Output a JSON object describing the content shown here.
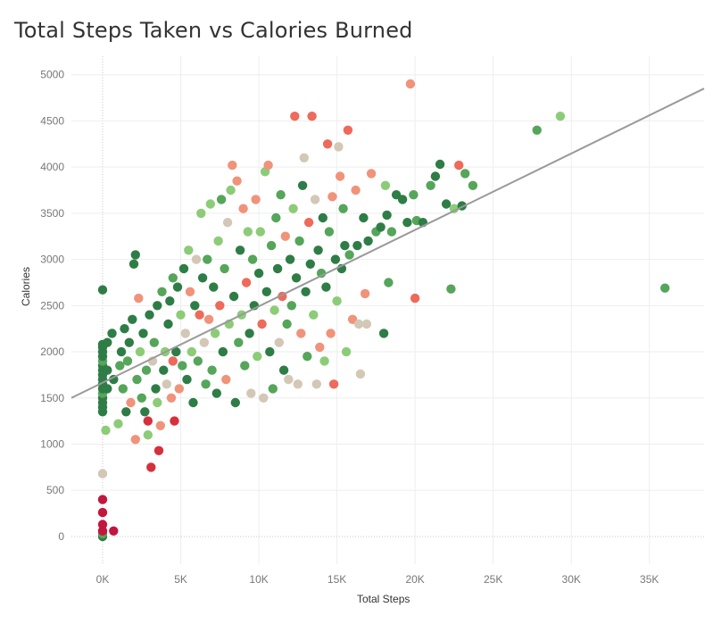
{
  "chart_data": {
    "type": "scatter",
    "title": "Total Steps Taken vs Calories Burned",
    "xlabel": "Total Steps",
    "ylabel": "Calories",
    "xlim": [
      -2000,
      38500
    ],
    "ylim": [
      -300,
      5200
    ],
    "x_ticks": [
      0,
      5000,
      10000,
      15000,
      20000,
      25000,
      30000,
      35000
    ],
    "x_tick_labels": [
      "0K",
      "5K",
      "10K",
      "15K",
      "20K",
      "25K",
      "30K",
      "35K"
    ],
    "y_ticks": [
      0,
      500,
      1000,
      1500,
      2000,
      2500,
      3000,
      3500,
      4000,
      4500,
      5000
    ],
    "y_tick_labels": [
      "0",
      "500",
      "1000",
      "1500",
      "2000",
      "2500",
      "3000",
      "3500",
      "4000",
      "4500",
      "5000"
    ],
    "grid": true,
    "trend_line": {
      "x": [
        -2000,
        38500
      ],
      "y": [
        1500,
        4850
      ]
    },
    "colors": {
      "dark_green": "#2e7d46",
      "mid_green": "#55a55a",
      "light_green": "#8ccc78",
      "tan": "#d3c7b6",
      "salmon": "#f0937a",
      "coral": "#ee6a5a",
      "red": "#d6303c",
      "crimson": "#c2163f",
      "trend": "#999999"
    },
    "points": [
      [
        0,
        0,
        "dark_green"
      ],
      [
        0,
        30,
        "mid_green"
      ],
      [
        0,
        60,
        "crimson"
      ],
      [
        0,
        130,
        "crimson"
      ],
      [
        0,
        260,
        "crimson"
      ],
      [
        0,
        400,
        "crimson"
      ],
      [
        700,
        60,
        "crimson"
      ],
      [
        0,
        680,
        "tan"
      ],
      [
        0,
        1350,
        "dark_green"
      ],
      [
        0,
        1400,
        "dark_green"
      ],
      [
        0,
        1450,
        "dark_green"
      ],
      [
        0,
        1500,
        "dark_green"
      ],
      [
        0,
        1550,
        "mid_green"
      ],
      [
        0,
        1600,
        "dark_green"
      ],
      [
        0,
        1650,
        "dark_green"
      ],
      [
        0,
        1700,
        "dark_green"
      ],
      [
        0,
        1750,
        "dark_green"
      ],
      [
        0,
        1800,
        "dark_green"
      ],
      [
        0,
        1850,
        "dark_green"
      ],
      [
        0,
        1900,
        "mid_green"
      ],
      [
        0,
        1950,
        "dark_green"
      ],
      [
        0,
        2000,
        "dark_green"
      ],
      [
        0,
        2050,
        "dark_green"
      ],
      [
        0,
        2080,
        "dark_green"
      ],
      [
        0,
        2670,
        "dark_green"
      ],
      [
        200,
        1150,
        "light_green"
      ],
      [
        300,
        1600,
        "dark_green"
      ],
      [
        300,
        1800,
        "dark_green"
      ],
      [
        300,
        2100,
        "dark_green"
      ],
      [
        600,
        2200,
        "dark_green"
      ],
      [
        700,
        1700,
        "dark_green"
      ],
      [
        1000,
        1220,
        "light_green"
      ],
      [
        1100,
        1850,
        "mid_green"
      ],
      [
        1200,
        2000,
        "dark_green"
      ],
      [
        1300,
        1600,
        "mid_green"
      ],
      [
        1400,
        2250,
        "dark_green"
      ],
      [
        1500,
        1350,
        "dark_green"
      ],
      [
        1600,
        1900,
        "mid_green"
      ],
      [
        1700,
        2100,
        "dark_green"
      ],
      [
        1800,
        1450,
        "salmon"
      ],
      [
        1900,
        2350,
        "dark_green"
      ],
      [
        2000,
        2950,
        "dark_green"
      ],
      [
        2100,
        3050,
        "dark_green"
      ],
      [
        2100,
        1050,
        "salmon"
      ],
      [
        2200,
        1700,
        "mid_green"
      ],
      [
        2300,
        2580,
        "salmon"
      ],
      [
        2400,
        2000,
        "light_green"
      ],
      [
        2500,
        1500,
        "mid_green"
      ],
      [
        2600,
        2200,
        "dark_green"
      ],
      [
        2700,
        1350,
        "dark_green"
      ],
      [
        2800,
        1800,
        "mid_green"
      ],
      [
        2900,
        1250,
        "red"
      ],
      [
        2900,
        1100,
        "light_green"
      ],
      [
        3000,
        2400,
        "dark_green"
      ],
      [
        3100,
        750,
        "red"
      ],
      [
        3200,
        1900,
        "tan"
      ],
      [
        3300,
        2100,
        "mid_green"
      ],
      [
        3400,
        1600,
        "dark_green"
      ],
      [
        3500,
        2500,
        "dark_green"
      ],
      [
        3500,
        1450,
        "light_green"
      ],
      [
        3600,
        930,
        "red"
      ],
      [
        3700,
        1200,
        "salmon"
      ],
      [
        3800,
        2650,
        "mid_green"
      ],
      [
        3900,
        1800,
        "dark_green"
      ],
      [
        4000,
        2000,
        "light_green"
      ],
      [
        4100,
        1650,
        "tan"
      ],
      [
        4200,
        2300,
        "dark_green"
      ],
      [
        4300,
        2550,
        "dark_green"
      ],
      [
        4400,
        1500,
        "salmon"
      ],
      [
        4500,
        2800,
        "mid_green"
      ],
      [
        4500,
        1900,
        "coral"
      ],
      [
        4600,
        1250,
        "red"
      ],
      [
        4700,
        2000,
        "dark_green"
      ],
      [
        4800,
        2700,
        "dark_green"
      ],
      [
        4900,
        1600,
        "salmon"
      ],
      [
        5000,
        2400,
        "light_green"
      ],
      [
        5100,
        1850,
        "mid_green"
      ],
      [
        5200,
        2900,
        "dark_green"
      ],
      [
        5300,
        2200,
        "tan"
      ],
      [
        5400,
        1700,
        "dark_green"
      ],
      [
        5500,
        3100,
        "light_green"
      ],
      [
        5600,
        2650,
        "salmon"
      ],
      [
        5700,
        2000,
        "light_green"
      ],
      [
        5800,
        1450,
        "dark_green"
      ],
      [
        5900,
        2500,
        "dark_green"
      ],
      [
        6000,
        3000,
        "tan"
      ],
      [
        6100,
        1900,
        "mid_green"
      ],
      [
        6200,
        2400,
        "coral"
      ],
      [
        6300,
        3500,
        "light_green"
      ],
      [
        6400,
        2800,
        "dark_green"
      ],
      [
        6500,
        2100,
        "tan"
      ],
      [
        6600,
        1650,
        "mid_green"
      ],
      [
        6700,
        3000,
        "mid_green"
      ],
      [
        6800,
        2350,
        "salmon"
      ],
      [
        6900,
        3600,
        "light_green"
      ],
      [
        7000,
        1800,
        "mid_green"
      ],
      [
        7100,
        2700,
        "dark_green"
      ],
      [
        7200,
        2200,
        "light_green"
      ],
      [
        7300,
        1550,
        "dark_green"
      ],
      [
        7400,
        3200,
        "light_green"
      ],
      [
        7500,
        2500,
        "coral"
      ],
      [
        7600,
        3650,
        "mid_green"
      ],
      [
        7700,
        2000,
        "dark_green"
      ],
      [
        7800,
        2900,
        "mid_green"
      ],
      [
        7900,
        1700,
        "salmon"
      ],
      [
        8000,
        3400,
        "tan"
      ],
      [
        8100,
        2300,
        "light_green"
      ],
      [
        8200,
        3750,
        "light_green"
      ],
      [
        8300,
        4020,
        "salmon"
      ],
      [
        8400,
        2600,
        "dark_green"
      ],
      [
        8500,
        1450,
        "dark_green"
      ],
      [
        8600,
        3850,
        "salmon"
      ],
      [
        8700,
        2100,
        "mid_green"
      ],
      [
        8800,
        3100,
        "dark_green"
      ],
      [
        8900,
        2400,
        "light_green"
      ],
      [
        9000,
        3550,
        "salmon"
      ],
      [
        9100,
        1850,
        "mid_green"
      ],
      [
        9200,
        2750,
        "coral"
      ],
      [
        9300,
        3300,
        "light_green"
      ],
      [
        9400,
        2200,
        "dark_green"
      ],
      [
        9500,
        1550,
        "tan"
      ],
      [
        9600,
        3000,
        "mid_green"
      ],
      [
        9700,
        2500,
        "dark_green"
      ],
      [
        9800,
        3650,
        "salmon"
      ],
      [
        9900,
        1950,
        "light_green"
      ],
      [
        10000,
        2850,
        "dark_green"
      ],
      [
        10100,
        3300,
        "light_green"
      ],
      [
        10200,
        2300,
        "coral"
      ],
      [
        10300,
        1500,
        "tan"
      ],
      [
        10400,
        3950,
        "light_green"
      ],
      [
        10500,
        2650,
        "dark_green"
      ],
      [
        10600,
        4020,
        "salmon"
      ],
      [
        10700,
        2000,
        "dark_green"
      ],
      [
        10800,
        3150,
        "mid_green"
      ],
      [
        10900,
        1600,
        "mid_green"
      ],
      [
        11000,
        2450,
        "light_green"
      ],
      [
        11100,
        3450,
        "mid_green"
      ],
      [
        11200,
        2900,
        "dark_green"
      ],
      [
        11300,
        2100,
        "tan"
      ],
      [
        11400,
        3700,
        "mid_green"
      ],
      [
        11500,
        2600,
        "coral"
      ],
      [
        11600,
        1800,
        "dark_green"
      ],
      [
        11700,
        3250,
        "salmon"
      ],
      [
        11800,
        2300,
        "mid_green"
      ],
      [
        11900,
        1700,
        "tan"
      ],
      [
        12000,
        3000,
        "dark_green"
      ],
      [
        12100,
        2500,
        "mid_green"
      ],
      [
        12200,
        3550,
        "light_green"
      ],
      [
        12300,
        4550,
        "coral"
      ],
      [
        12400,
        2800,
        "dark_green"
      ],
      [
        12500,
        1650,
        "tan"
      ],
      [
        12600,
        3200,
        "mid_green"
      ],
      [
        12700,
        2200,
        "salmon"
      ],
      [
        12800,
        3800,
        "dark_green"
      ],
      [
        12900,
        4100,
        "tan"
      ],
      [
        13000,
        2650,
        "dark_green"
      ],
      [
        13100,
        1950,
        "mid_green"
      ],
      [
        13200,
        3400,
        "coral"
      ],
      [
        13300,
        2950,
        "dark_green"
      ],
      [
        13400,
        4550,
        "coral"
      ],
      [
        13500,
        2400,
        "light_green"
      ],
      [
        13600,
        3650,
        "tan"
      ],
      [
        13700,
        1650,
        "tan"
      ],
      [
        13800,
        3100,
        "dark_green"
      ],
      [
        13900,
        2050,
        "salmon"
      ],
      [
        14000,
        2850,
        "mid_green"
      ],
      [
        14100,
        3450,
        "dark_green"
      ],
      [
        14200,
        1900,
        "light_green"
      ],
      [
        14300,
        2700,
        "dark_green"
      ],
      [
        14400,
        4250,
        "coral"
      ],
      [
        14500,
        3300,
        "mid_green"
      ],
      [
        14600,
        2200,
        "salmon"
      ],
      [
        14700,
        3680,
        "salmon"
      ],
      [
        14800,
        1650,
        "coral"
      ],
      [
        14900,
        3000,
        "dark_green"
      ],
      [
        15000,
        2550,
        "light_green"
      ],
      [
        15100,
        4220,
        "tan"
      ],
      [
        15200,
        3900,
        "salmon"
      ],
      [
        15300,
        2900,
        "dark_green"
      ],
      [
        15400,
        3550,
        "mid_green"
      ],
      [
        15500,
        3150,
        "dark_green"
      ],
      [
        15600,
        2000,
        "light_green"
      ],
      [
        15700,
        4400,
        "coral"
      ],
      [
        15800,
        3050,
        "mid_green"
      ],
      [
        16000,
        2350,
        "salmon"
      ],
      [
        16200,
        3750,
        "salmon"
      ],
      [
        16300,
        3150,
        "dark_green"
      ],
      [
        16400,
        2300,
        "tan"
      ],
      [
        16500,
        1760,
        "tan"
      ],
      [
        16700,
        3450,
        "dark_green"
      ],
      [
        16800,
        2630,
        "salmon"
      ],
      [
        16900,
        2300,
        "tan"
      ],
      [
        17000,
        3200,
        "dark_green"
      ],
      [
        17200,
        3930,
        "salmon"
      ],
      [
        17500,
        3300,
        "mid_green"
      ],
      [
        17800,
        3350,
        "dark_green"
      ],
      [
        18000,
        2200,
        "dark_green"
      ],
      [
        18100,
        3800,
        "light_green"
      ],
      [
        18200,
        3480,
        "dark_green"
      ],
      [
        18300,
        2750,
        "mid_green"
      ],
      [
        18500,
        3300,
        "mid_green"
      ],
      [
        18800,
        3700,
        "dark_green"
      ],
      [
        19200,
        3650,
        "dark_green"
      ],
      [
        19500,
        3400,
        "dark_green"
      ],
      [
        19700,
        4900,
        "salmon"
      ],
      [
        19900,
        3700,
        "mid_green"
      ],
      [
        20000,
        2580,
        "coral"
      ],
      [
        20100,
        3420,
        "mid_green"
      ],
      [
        20500,
        3400,
        "dark_green"
      ],
      [
        21000,
        3800,
        "mid_green"
      ],
      [
        21300,
        3900,
        "dark_green"
      ],
      [
        21600,
        4030,
        "dark_green"
      ],
      [
        22000,
        3600,
        "dark_green"
      ],
      [
        22300,
        2680,
        "mid_green"
      ],
      [
        22500,
        3550,
        "light_green"
      ],
      [
        22800,
        4020,
        "coral"
      ],
      [
        23000,
        3580,
        "dark_green"
      ],
      [
        23200,
        3930,
        "mid_green"
      ],
      [
        23700,
        3800,
        "mid_green"
      ],
      [
        27800,
        4400,
        "mid_green"
      ],
      [
        29300,
        4550,
        "light_green"
      ],
      [
        36000,
        2690,
        "mid_green"
      ]
    ]
  }
}
